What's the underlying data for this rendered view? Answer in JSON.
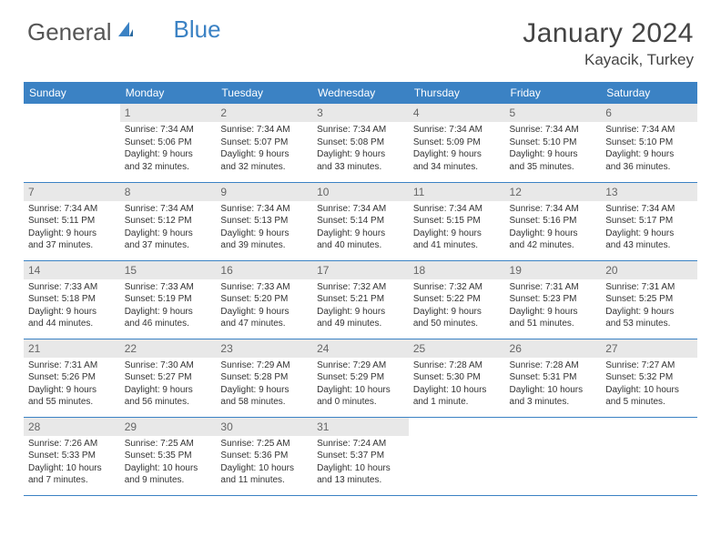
{
  "brand": {
    "part1": "General",
    "part2": "Blue"
  },
  "title": "January 2024",
  "location": "Kayacik, Turkey",
  "colors": {
    "header_bg": "#3b82c4",
    "header_text": "#ffffff",
    "daynum_bg": "#e8e8e8",
    "daynum_text": "#666666",
    "border": "#3b82c4",
    "background": "#ffffff"
  },
  "day_names": [
    "Sunday",
    "Monday",
    "Tuesday",
    "Wednesday",
    "Thursday",
    "Friday",
    "Saturday"
  ],
  "weeks": [
    [
      null,
      {
        "n": "1",
        "sr": "Sunrise: 7:34 AM",
        "ss": "Sunset: 5:06 PM",
        "d1": "Daylight: 9 hours",
        "d2": "and 32 minutes."
      },
      {
        "n": "2",
        "sr": "Sunrise: 7:34 AM",
        "ss": "Sunset: 5:07 PM",
        "d1": "Daylight: 9 hours",
        "d2": "and 32 minutes."
      },
      {
        "n": "3",
        "sr": "Sunrise: 7:34 AM",
        "ss": "Sunset: 5:08 PM",
        "d1": "Daylight: 9 hours",
        "d2": "and 33 minutes."
      },
      {
        "n": "4",
        "sr": "Sunrise: 7:34 AM",
        "ss": "Sunset: 5:09 PM",
        "d1": "Daylight: 9 hours",
        "d2": "and 34 minutes."
      },
      {
        "n": "5",
        "sr": "Sunrise: 7:34 AM",
        "ss": "Sunset: 5:10 PM",
        "d1": "Daylight: 9 hours",
        "d2": "and 35 minutes."
      },
      {
        "n": "6",
        "sr": "Sunrise: 7:34 AM",
        "ss": "Sunset: 5:10 PM",
        "d1": "Daylight: 9 hours",
        "d2": "and 36 minutes."
      }
    ],
    [
      {
        "n": "7",
        "sr": "Sunrise: 7:34 AM",
        "ss": "Sunset: 5:11 PM",
        "d1": "Daylight: 9 hours",
        "d2": "and 37 minutes."
      },
      {
        "n": "8",
        "sr": "Sunrise: 7:34 AM",
        "ss": "Sunset: 5:12 PM",
        "d1": "Daylight: 9 hours",
        "d2": "and 37 minutes."
      },
      {
        "n": "9",
        "sr": "Sunrise: 7:34 AM",
        "ss": "Sunset: 5:13 PM",
        "d1": "Daylight: 9 hours",
        "d2": "and 39 minutes."
      },
      {
        "n": "10",
        "sr": "Sunrise: 7:34 AM",
        "ss": "Sunset: 5:14 PM",
        "d1": "Daylight: 9 hours",
        "d2": "and 40 minutes."
      },
      {
        "n": "11",
        "sr": "Sunrise: 7:34 AM",
        "ss": "Sunset: 5:15 PM",
        "d1": "Daylight: 9 hours",
        "d2": "and 41 minutes."
      },
      {
        "n": "12",
        "sr": "Sunrise: 7:34 AM",
        "ss": "Sunset: 5:16 PM",
        "d1": "Daylight: 9 hours",
        "d2": "and 42 minutes."
      },
      {
        "n": "13",
        "sr": "Sunrise: 7:34 AM",
        "ss": "Sunset: 5:17 PM",
        "d1": "Daylight: 9 hours",
        "d2": "and 43 minutes."
      }
    ],
    [
      {
        "n": "14",
        "sr": "Sunrise: 7:33 AM",
        "ss": "Sunset: 5:18 PM",
        "d1": "Daylight: 9 hours",
        "d2": "and 44 minutes."
      },
      {
        "n": "15",
        "sr": "Sunrise: 7:33 AM",
        "ss": "Sunset: 5:19 PM",
        "d1": "Daylight: 9 hours",
        "d2": "and 46 minutes."
      },
      {
        "n": "16",
        "sr": "Sunrise: 7:33 AM",
        "ss": "Sunset: 5:20 PM",
        "d1": "Daylight: 9 hours",
        "d2": "and 47 minutes."
      },
      {
        "n": "17",
        "sr": "Sunrise: 7:32 AM",
        "ss": "Sunset: 5:21 PM",
        "d1": "Daylight: 9 hours",
        "d2": "and 49 minutes."
      },
      {
        "n": "18",
        "sr": "Sunrise: 7:32 AM",
        "ss": "Sunset: 5:22 PM",
        "d1": "Daylight: 9 hours",
        "d2": "and 50 minutes."
      },
      {
        "n": "19",
        "sr": "Sunrise: 7:31 AM",
        "ss": "Sunset: 5:23 PM",
        "d1": "Daylight: 9 hours",
        "d2": "and 51 minutes."
      },
      {
        "n": "20",
        "sr": "Sunrise: 7:31 AM",
        "ss": "Sunset: 5:25 PM",
        "d1": "Daylight: 9 hours",
        "d2": "and 53 minutes."
      }
    ],
    [
      {
        "n": "21",
        "sr": "Sunrise: 7:31 AM",
        "ss": "Sunset: 5:26 PM",
        "d1": "Daylight: 9 hours",
        "d2": "and 55 minutes."
      },
      {
        "n": "22",
        "sr": "Sunrise: 7:30 AM",
        "ss": "Sunset: 5:27 PM",
        "d1": "Daylight: 9 hours",
        "d2": "and 56 minutes."
      },
      {
        "n": "23",
        "sr": "Sunrise: 7:29 AM",
        "ss": "Sunset: 5:28 PM",
        "d1": "Daylight: 9 hours",
        "d2": "and 58 minutes."
      },
      {
        "n": "24",
        "sr": "Sunrise: 7:29 AM",
        "ss": "Sunset: 5:29 PM",
        "d1": "Daylight: 10 hours",
        "d2": "and 0 minutes."
      },
      {
        "n": "25",
        "sr": "Sunrise: 7:28 AM",
        "ss": "Sunset: 5:30 PM",
        "d1": "Daylight: 10 hours",
        "d2": "and 1 minute."
      },
      {
        "n": "26",
        "sr": "Sunrise: 7:28 AM",
        "ss": "Sunset: 5:31 PM",
        "d1": "Daylight: 10 hours",
        "d2": "and 3 minutes."
      },
      {
        "n": "27",
        "sr": "Sunrise: 7:27 AM",
        "ss": "Sunset: 5:32 PM",
        "d1": "Daylight: 10 hours",
        "d2": "and 5 minutes."
      }
    ],
    [
      {
        "n": "28",
        "sr": "Sunrise: 7:26 AM",
        "ss": "Sunset: 5:33 PM",
        "d1": "Daylight: 10 hours",
        "d2": "and 7 minutes."
      },
      {
        "n": "29",
        "sr": "Sunrise: 7:25 AM",
        "ss": "Sunset: 5:35 PM",
        "d1": "Daylight: 10 hours",
        "d2": "and 9 minutes."
      },
      {
        "n": "30",
        "sr": "Sunrise: 7:25 AM",
        "ss": "Sunset: 5:36 PM",
        "d1": "Daylight: 10 hours",
        "d2": "and 11 minutes."
      },
      {
        "n": "31",
        "sr": "Sunrise: 7:24 AM",
        "ss": "Sunset: 5:37 PM",
        "d1": "Daylight: 10 hours",
        "d2": "and 13 minutes."
      },
      null,
      null,
      null
    ]
  ]
}
